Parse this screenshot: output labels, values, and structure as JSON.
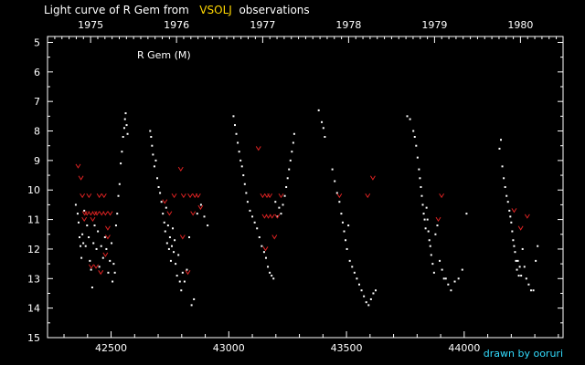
{
  "header": {
    "title_before": "Light curve of R Gem from",
    "title_source": "VSOLJ",
    "title_after": "observations"
  },
  "credit": "drawn by ooruri",
  "colors": {
    "background": "#000000",
    "visual_points": "#ffffff",
    "other_points": "#dd2222",
    "source_highlight": "#ffd700",
    "credit": "#33ddff"
  },
  "chart_data": {
    "type": "scatter",
    "title": "Light curve of R Gem from VSOLJ observations",
    "annotation": "R Gem (M)",
    "xlabel": "",
    "ylabel": "",
    "xlim": [
      42230,
      44420
    ],
    "ylim": [
      15,
      4.8
    ],
    "y_inverted": true,
    "x_ticks": [
      42500,
      43000,
      43500,
      44000
    ],
    "y_ticks": [
      5,
      6,
      7,
      8,
      9,
      10,
      11,
      12,
      13,
      14,
      15
    ],
    "top_axis": {
      "labels": [
        "1975",
        "1976",
        "1977",
        "1978",
        "1979",
        "1980"
      ],
      "x": [
        42413,
        42778,
        43144,
        43509,
        43874,
        44239
      ]
    },
    "grid": false,
    "series": [
      {
        "marker": "dot",
        "color": "#ffffff",
        "points": [
          [
            42350,
            10.5
          ],
          [
            42358,
            10.8
          ],
          [
            42362,
            11.1
          ],
          [
            42366,
            11.6
          ],
          [
            42370,
            11.9
          ],
          [
            42374,
            12.3
          ],
          [
            42378,
            11.5
          ],
          [
            42382,
            11.8
          ],
          [
            42386,
            10.7
          ],
          [
            42392,
            11.9
          ],
          [
            42398,
            11.2
          ],
          [
            42405,
            11.6
          ],
          [
            42410,
            12.4
          ],
          [
            42415,
            12.7
          ],
          [
            42420,
            13.3
          ],
          [
            42425,
            11.8
          ],
          [
            42430,
            11.2
          ],
          [
            42438,
            12.0
          ],
          [
            42444,
            11.4
          ],
          [
            42450,
            12.6
          ],
          [
            42458,
            11.9
          ],
          [
            42466,
            12.3
          ],
          [
            42474,
            11.6
          ],
          [
            42480,
            12.0
          ],
          [
            42488,
            12.8
          ],
          [
            42495,
            12.4
          ],
          [
            42502,
            11.8
          ],
          [
            42506,
            13.1
          ],
          [
            42511,
            12.5
          ],
          [
            42516,
            12.8
          ],
          [
            42521,
            11.2
          ],
          [
            42526,
            10.8
          ],
          [
            42531,
            10.2
          ],
          [
            42536,
            9.8
          ],
          [
            42541,
            9.1
          ],
          [
            42546,
            8.7
          ],
          [
            42551,
            8.2
          ],
          [
            42556,
            7.9
          ],
          [
            42559,
            7.6
          ],
          [
            42562,
            7.4
          ],
          [
            42566,
            7.8
          ],
          [
            42570,
            8.1
          ],
          [
            42666,
            8.0
          ],
          [
            42670,
            8.2
          ],
          [
            42674,
            8.5
          ],
          [
            42678,
            8.8
          ],
          [
            42684,
            9.2
          ],
          [
            42690,
            9.0
          ],
          [
            42696,
            9.6
          ],
          [
            42702,
            9.9
          ],
          [
            42708,
            10.1
          ],
          [
            42714,
            10.4
          ],
          [
            42720,
            10.8
          ],
          [
            42726,
            11.1
          ],
          [
            42730,
            11.4
          ],
          [
            42734,
            10.6
          ],
          [
            42738,
            11.8
          ],
          [
            42742,
            11.2
          ],
          [
            42746,
            12.0
          ],
          [
            42750,
            11.6
          ],
          [
            42754,
            12.4
          ],
          [
            42758,
            11.9
          ],
          [
            42762,
            11.3
          ],
          [
            42766,
            12.1
          ],
          [
            42770,
            11.7
          ],
          [
            42774,
            12.5
          ],
          [
            42780,
            12.9
          ],
          [
            42786,
            12.2
          ],
          [
            42792,
            13.1
          ],
          [
            42798,
            13.4
          ],
          [
            42804,
            12.8
          ],
          [
            42812,
            13.1
          ],
          [
            42822,
            12.7
          ],
          [
            42832,
            11.6
          ],
          [
            42842,
            13.9
          ],
          [
            42852,
            13.7
          ],
          [
            42866,
            10.8
          ],
          [
            42882,
            10.5
          ],
          [
            42896,
            10.9
          ],
          [
            42910,
            11.2
          ],
          [
            43020,
            7.5
          ],
          [
            43026,
            7.8
          ],
          [
            43032,
            8.1
          ],
          [
            43038,
            8.4
          ],
          [
            43044,
            8.7
          ],
          [
            43050,
            9.0
          ],
          [
            43056,
            9.2
          ],
          [
            43062,
            9.5
          ],
          [
            43068,
            9.8
          ],
          [
            43074,
            10.1
          ],
          [
            43080,
            10.4
          ],
          [
            43090,
            10.7
          ],
          [
            43100,
            10.9
          ],
          [
            43110,
            11.1
          ],
          [
            43120,
            11.3
          ],
          [
            43130,
            11.6
          ],
          [
            43140,
            11.9
          ],
          [
            43150,
            12.1
          ],
          [
            43158,
            12.3
          ],
          [
            43166,
            12.6
          ],
          [
            43174,
            12.8
          ],
          [
            43182,
            12.9
          ],
          [
            43190,
            13.0
          ],
          [
            43198,
            10.4
          ],
          [
            43206,
            10.9
          ],
          [
            43214,
            10.6
          ],
          [
            43222,
            10.8
          ],
          [
            43230,
            10.5
          ],
          [
            43238,
            10.2
          ],
          [
            43244,
            9.9
          ],
          [
            43250,
            9.6
          ],
          [
            43256,
            9.3
          ],
          [
            43262,
            9.0
          ],
          [
            43268,
            8.7
          ],
          [
            43274,
            8.4
          ],
          [
            43278,
            8.1
          ],
          [
            43382,
            7.3
          ],
          [
            43395,
            7.7
          ],
          [
            43402,
            7.9
          ],
          [
            43408,
            8.2
          ],
          [
            43440,
            9.3
          ],
          [
            43450,
            9.7
          ],
          [
            43460,
            10.1
          ],
          [
            43470,
            10.4
          ],
          [
            43478,
            10.8
          ],
          [
            43484,
            11.1
          ],
          [
            43490,
            11.4
          ],
          [
            43496,
            11.7
          ],
          [
            43502,
            12.0
          ],
          [
            43508,
            11.2
          ],
          [
            43514,
            12.4
          ],
          [
            43524,
            12.6
          ],
          [
            43534,
            12.8
          ],
          [
            43544,
            13.0
          ],
          [
            43554,
            13.2
          ],
          [
            43564,
            13.4
          ],
          [
            43574,
            13.6
          ],
          [
            43584,
            13.8
          ],
          [
            43594,
            13.9
          ],
          [
            43604,
            13.7
          ],
          [
            43614,
            13.5
          ],
          [
            43624,
            13.4
          ],
          [
            43758,
            7.5
          ],
          [
            43770,
            7.6
          ],
          [
            43784,
            8.0
          ],
          [
            43790,
            8.2
          ],
          [
            43796,
            8.5
          ],
          [
            43802,
            8.9
          ],
          [
            43808,
            9.3
          ],
          [
            43812,
            9.6
          ],
          [
            43816,
            9.9
          ],
          [
            43820,
            10.2
          ],
          [
            43824,
            10.5
          ],
          [
            43828,
            10.8
          ],
          [
            43832,
            11.0
          ],
          [
            43836,
            11.3
          ],
          [
            43840,
            10.6
          ],
          [
            43844,
            11.0
          ],
          [
            43848,
            11.4
          ],
          [
            43852,
            11.7
          ],
          [
            43856,
            11.9
          ],
          [
            43860,
            12.2
          ],
          [
            43866,
            12.5
          ],
          [
            43872,
            12.8
          ],
          [
            43878,
            11.5
          ],
          [
            43886,
            11.2
          ],
          [
            43896,
            12.4
          ],
          [
            43906,
            12.7
          ],
          [
            43914,
            13.0
          ],
          [
            43922,
            13.0
          ],
          [
            43932,
            13.2
          ],
          [
            43944,
            13.4
          ],
          [
            43960,
            13.1
          ],
          [
            43976,
            13.0
          ],
          [
            43992,
            12.7
          ],
          [
            44010,
            10.8
          ],
          [
            44150,
            8.6
          ],
          [
            44156,
            8.3
          ],
          [
            44162,
            9.2
          ],
          [
            44168,
            9.6
          ],
          [
            44174,
            9.9
          ],
          [
            44180,
            10.2
          ],
          [
            44186,
            10.4
          ],
          [
            44192,
            10.7
          ],
          [
            44196,
            10.9
          ],
          [
            44200,
            11.1
          ],
          [
            44204,
            11.4
          ],
          [
            44208,
            11.7
          ],
          [
            44212,
            11.9
          ],
          [
            44216,
            12.1
          ],
          [
            44220,
            12.4
          ],
          [
            44224,
            12.7
          ],
          [
            44228,
            12.4
          ],
          [
            44232,
            12.9
          ],
          [
            44236,
            12.6
          ],
          [
            44242,
            12.9
          ],
          [
            44248,
            12.0
          ],
          [
            44256,
            12.6
          ],
          [
            44264,
            13.0
          ],
          [
            44274,
            13.2
          ],
          [
            44284,
            13.4
          ],
          [
            44294,
            13.4
          ],
          [
            44304,
            12.4
          ],
          [
            44312,
            11.9
          ]
        ]
      },
      {
        "marker": "v",
        "color": "#dd2222",
        "points": [
          [
            42360,
            9.2
          ],
          [
            42372,
            9.6
          ],
          [
            42378,
            10.2
          ],
          [
            42388,
            10.8
          ],
          [
            42398,
            10.8
          ],
          [
            42406,
            10.2
          ],
          [
            42414,
            10.8
          ],
          [
            42422,
            11.0
          ],
          [
            42430,
            10.8
          ],
          [
            42440,
            10.8
          ],
          [
            42450,
            10.2
          ],
          [
            42460,
            10.8
          ],
          [
            42470,
            10.2
          ],
          [
            42476,
            10.8
          ],
          [
            42486,
            11.3
          ],
          [
            42496,
            10.8
          ],
          [
            42386,
            11.0
          ],
          [
            42416,
            12.6
          ],
          [
            42436,
            12.6
          ],
          [
            42456,
            12.8
          ],
          [
            42476,
            12.2
          ],
          [
            42486,
            11.6
          ],
          [
            42728,
            10.4
          ],
          [
            42748,
            10.8
          ],
          [
            42768,
            10.2
          ],
          [
            42796,
            9.3
          ],
          [
            42808,
            10.2
          ],
          [
            42826,
            12.8
          ],
          [
            42836,
            10.2
          ],
          [
            42848,
            10.8
          ],
          [
            42856,
            10.2
          ],
          [
            42870,
            10.2
          ],
          [
            42880,
            10.6
          ],
          [
            42804,
            11.6
          ],
          [
            43126,
            8.6
          ],
          [
            43144,
            10.2
          ],
          [
            43152,
            10.9
          ],
          [
            43162,
            10.2
          ],
          [
            43168,
            10.9
          ],
          [
            43174,
            10.2
          ],
          [
            43184,
            10.9
          ],
          [
            43194,
            11.6
          ],
          [
            43206,
            10.9
          ],
          [
            43222,
            10.2
          ],
          [
            43156,
            12.0
          ],
          [
            43470,
            10.2
          ],
          [
            43590,
            10.2
          ],
          [
            43612,
            9.6
          ],
          [
            43890,
            11.0
          ],
          [
            43904,
            10.2
          ],
          [
            44212,
            10.7
          ],
          [
            44240,
            11.3
          ],
          [
            44268,
            10.9
          ]
        ]
      }
    ]
  }
}
